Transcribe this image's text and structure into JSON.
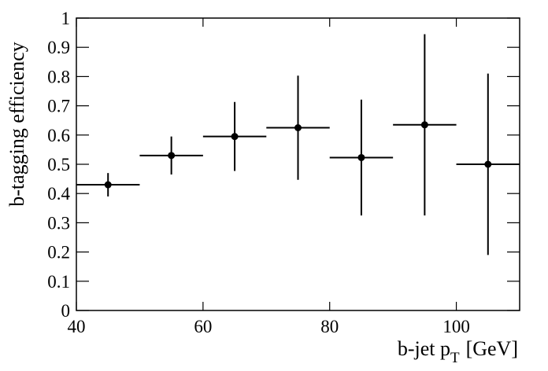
{
  "chart_data": {
    "type": "errorbar",
    "ylabel": "b-tagging efficiency",
    "xlabel_parts": [
      "b-jet p",
      "T",
      "[GeV]"
    ],
    "x": [
      45,
      55,
      65,
      75,
      85,
      95,
      105
    ],
    "xerr": [
      5,
      5,
      5,
      5,
      5,
      5,
      5
    ],
    "series": [
      {
        "color": "#000000",
        "values": [
          0.43,
          0.53,
          0.595,
          0.625,
          0.523,
          0.635,
          0.5
        ],
        "yerr": [
          0.04,
          0.065,
          0.118,
          0.178,
          0.198,
          0.31,
          0.31
        ]
      }
    ],
    "xlim": [
      40,
      110
    ],
    "xticks": [
      40,
      60,
      80,
      100
    ],
    "ylim": [
      0,
      1
    ],
    "yticks": [
      0,
      0.1,
      0.2,
      0.3,
      0.4,
      0.5,
      0.6,
      0.7,
      0.8,
      0.9,
      1
    ]
  }
}
